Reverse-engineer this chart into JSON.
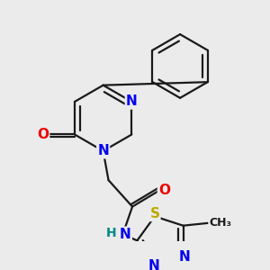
{
  "bg_color": "#ebebeb",
  "bond_color": "#1a1a1a",
  "bond_width": 1.6,
  "atom_colors": {
    "C": "#1a1a1a",
    "N": "#0000ee",
    "O": "#ee0000",
    "S": "#bbaa00",
    "H": "#008888"
  },
  "font_size": 11
}
